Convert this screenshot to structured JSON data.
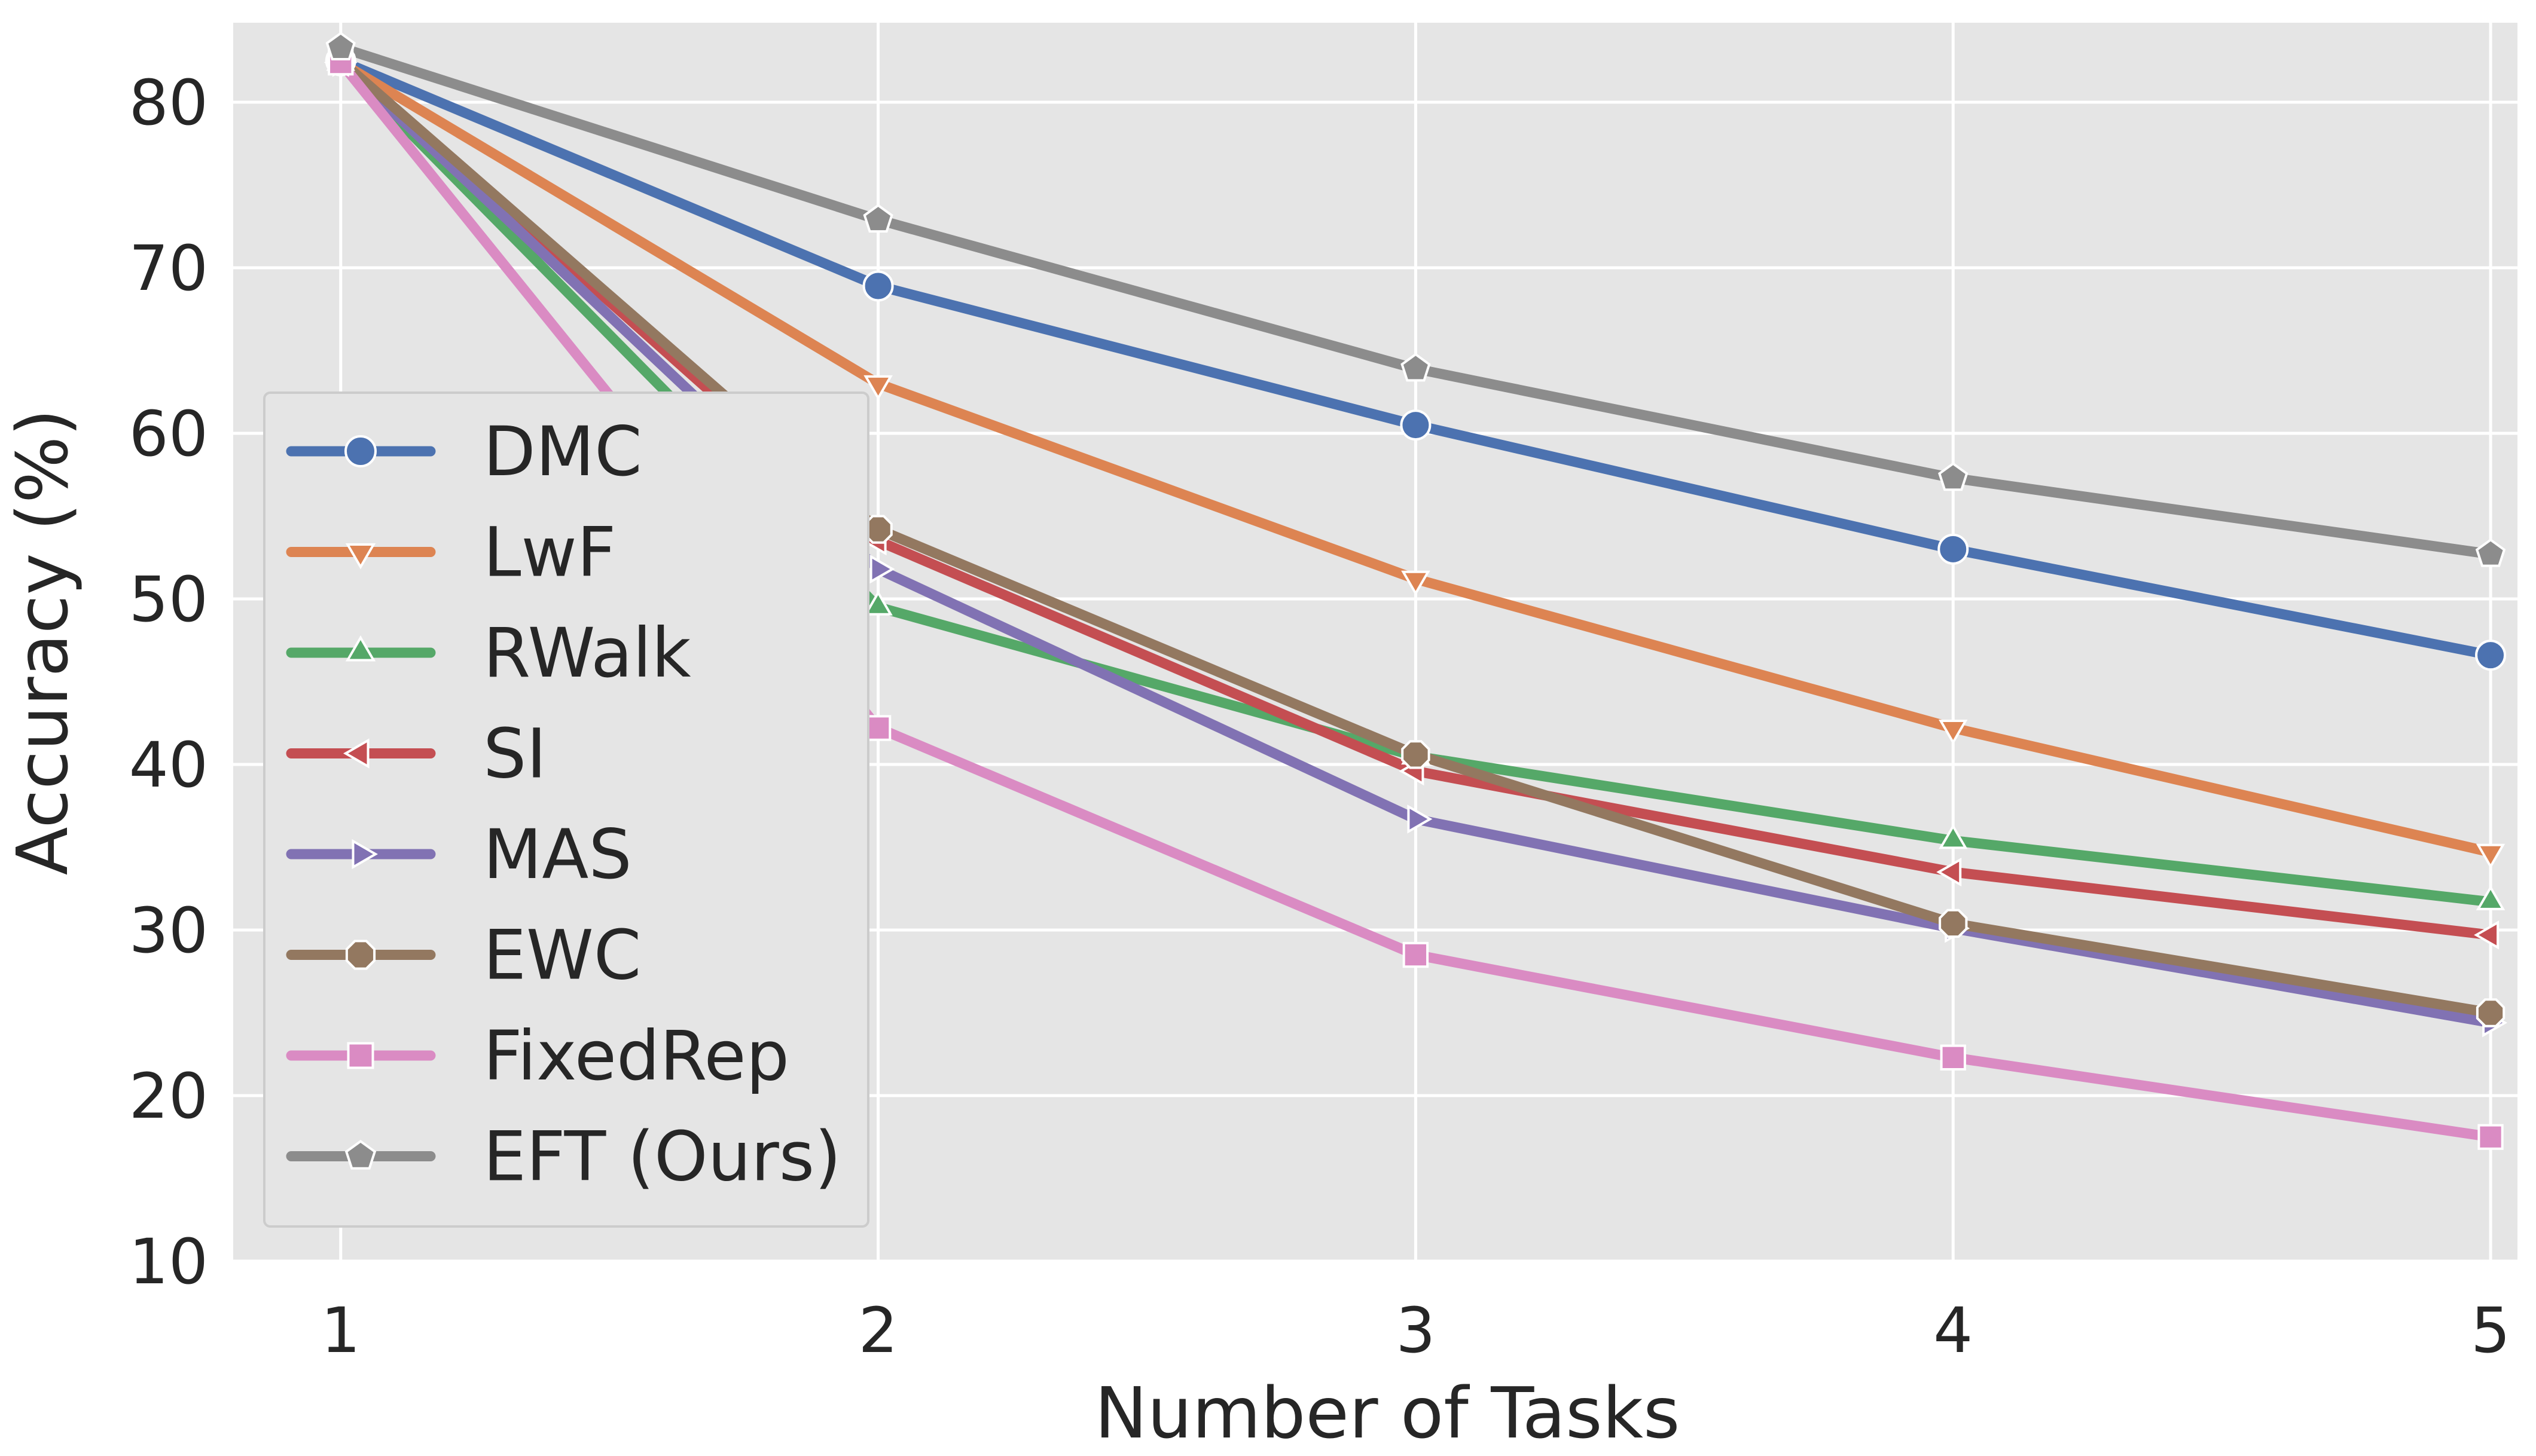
{
  "chart_data": {
    "type": "line",
    "title": "",
    "xlabel": "Number of Tasks",
    "ylabel": "Accuracy (%)",
    "x": [
      1,
      2,
      3,
      4,
      5
    ],
    "xlim": [
      0.8,
      5.05
    ],
    "ylim": [
      10,
      84.8
    ],
    "xticks": [
      1,
      2,
      3,
      4,
      5
    ],
    "yticks": [
      10,
      20,
      30,
      40,
      50,
      60,
      70,
      80
    ],
    "grid": true,
    "legend_position": "center-left",
    "series": [
      {
        "name": "DMC",
        "color": "#4c72b0",
        "marker": "circle",
        "values": [
          82.5,
          68.9,
          60.5,
          53.0,
          46.6
        ]
      },
      {
        "name": "LwF",
        "color": "#dd8452",
        "marker": "triangle-down",
        "values": [
          82.4,
          63.0,
          51.2,
          42.2,
          34.7
        ]
      },
      {
        "name": "RWalk",
        "color": "#55a868",
        "marker": "triangle-up",
        "values": [
          82.4,
          49.5,
          40.5,
          35.4,
          31.7
        ]
      },
      {
        "name": "SI",
        "color": "#c44e52",
        "marker": "triangle-left",
        "values": [
          82.4,
          53.5,
          39.6,
          33.5,
          29.7
        ]
      },
      {
        "name": "MAS",
        "color": "#8172b3",
        "marker": "triangle-right",
        "values": [
          82.4,
          51.8,
          36.7,
          30.1,
          24.4
        ]
      },
      {
        "name": "EWC",
        "color": "#937860",
        "marker": "octagon",
        "values": [
          82.5,
          54.2,
          40.6,
          30.4,
          25.0
        ]
      },
      {
        "name": "FixedRep",
        "color": "#da8bc3",
        "marker": "square",
        "values": [
          82.4,
          42.2,
          28.5,
          22.3,
          17.5
        ]
      },
      {
        "name": "EFT (Ours)",
        "color": "#8c8c8c",
        "marker": "pentagon",
        "values": [
          83.3,
          72.9,
          63.9,
          57.3,
          52.7
        ]
      }
    ]
  }
}
